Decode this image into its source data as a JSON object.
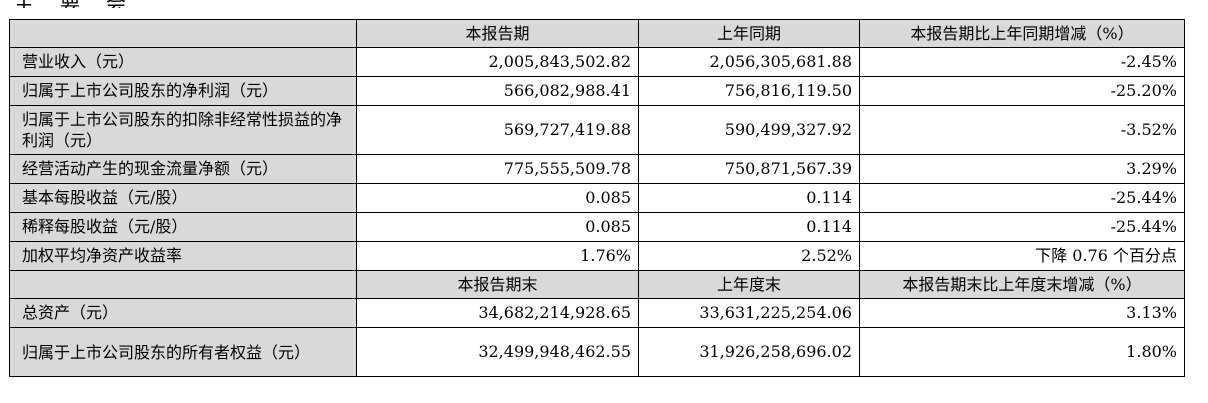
{
  "top_cut_text": "主要会计数据和财务指标",
  "header1": [
    "",
    "本报告期",
    "上年同期",
    "本报告期比上年同期增减（%）"
  ],
  "rows1": [
    [
      "营业收入（元）",
      "2,005,843,502.82",
      "2,056,305,681.88",
      "-2.45%"
    ],
    [
      "归属于上市公司股东的净利润（元）",
      "566,082,988.41",
      "756,816,119.50",
      "-25.20%"
    ],
    [
      "归属于上市公司股东的扣除非经常性损益的净利润（元）",
      "569,727,419.88",
      "590,499,327.92",
      "-3.52%"
    ],
    [
      "经营活动产生的现金流量净额（元）",
      "775,555,509.78",
      "750,871,567.39",
      "3.29%"
    ],
    [
      "基本每股收益（元/股）",
      "0.085",
      "0.114",
      "-25.44%"
    ],
    [
      "稀释每股收益（元/股）",
      "0.085",
      "0.114",
      "-25.44%"
    ],
    [
      "加权平均净资产收益率",
      "1.76%",
      "2.52%",
      "下降 0.76 个百分点"
    ]
  ],
  "header2": [
    "",
    "本报告期末",
    "上年度末",
    "本报告期末比上年度末增减（%）"
  ],
  "rows2": [
    [
      "总资产（元）",
      "34,682,214,928.65",
      "33,631,225,254.06",
      "3.13%"
    ],
    [
      "归属于上市公司股东的所有者权益（元）",
      "32,499,948,462.55",
      "31,926,258,696.02",
      "1.80%"
    ]
  ]
}
